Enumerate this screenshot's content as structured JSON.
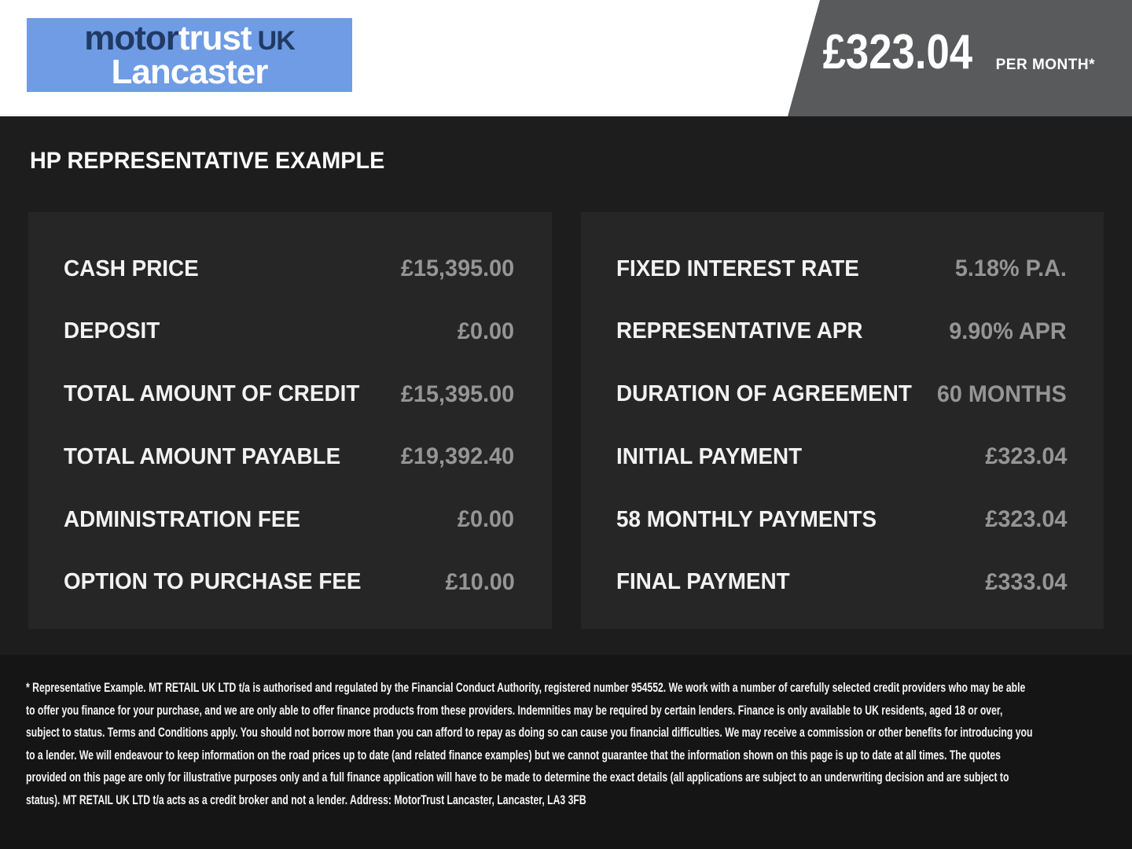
{
  "brand": {
    "logo_part_motor": "motor",
    "logo_part_trust": "trust",
    "logo_part_uk": "UK",
    "logo_line2": "Lancaster"
  },
  "header_price": {
    "amount": "£323.04",
    "suffix": "PER MONTH*"
  },
  "section": {
    "heading": "HP REPRESENTATIVE EXAMPLE"
  },
  "finance_example": {
    "left_rows": [
      {
        "label": "CASH PRICE",
        "value": "£15,395.00"
      },
      {
        "label": "DEPOSIT",
        "value": "£0.00"
      },
      {
        "label": "TOTAL AMOUNT OF CREDIT",
        "value": "£15,395.00"
      },
      {
        "label": "TOTAL AMOUNT PAYABLE",
        "value": "£19,392.40"
      },
      {
        "label": "ADMINISTRATION FEE",
        "value": "£0.00"
      },
      {
        "label": "OPTION TO PURCHASE FEE",
        "value": "£10.00"
      }
    ],
    "right_rows": [
      {
        "label": "FIXED INTEREST RATE",
        "value": "5.18% P.A."
      },
      {
        "label": "REPRESENTATIVE APR",
        "value": "9.90% APR"
      },
      {
        "label": "DURATION OF AGREEMENT",
        "value": "60 MONTHS"
      },
      {
        "label": "INITIAL PAYMENT",
        "value": "£323.04"
      },
      {
        "label": "58 MONTHLY PAYMENTS",
        "value": "£323.04"
      },
      {
        "label": "FINAL PAYMENT",
        "value": "£333.04"
      }
    ]
  },
  "footer": {
    "disclaimer": "* Representative Example. MT RETAIL UK LTD t/a is authorised and regulated by the Financial Conduct Authority, registered number 954552. We work with a number of carefully selected credit providers who may be able to offer you finance for your purchase, and we are only able to offer finance products from these providers. Indemnities may be required by certain lenders. Finance is only available to UK residents, aged 18 or over, subject to status. Terms and Conditions apply. You should not borrow more than you can afford to repay as doing so can cause you financial difficulties. We may receive a commission or other benefits for introducing you to a lender. We will endeavour to keep information on the road prices up to date (and related finance examples) but we cannot guarantee that the information shown on this page is up to date at all times. The quotes provided on this page are only for illustrative purposes only and a full finance application will have to be made to determine the exact details (all applications are subject to an underwriting decision and are subject to status). MT RETAIL UK LTD t/a acts as a credit broker and not a lender. Address: MotorTrust Lancaster, Lancaster, LA3 3FB"
  },
  "colors": {
    "logo_bg": "#6f9ce4",
    "logo_navy": "#203a64",
    "banner_gray": "#595a5c",
    "page_bg": "#1d1d1d",
    "panel_bg": "#262626",
    "value_gray": "#959595",
    "footer_bg": "#151515"
  }
}
